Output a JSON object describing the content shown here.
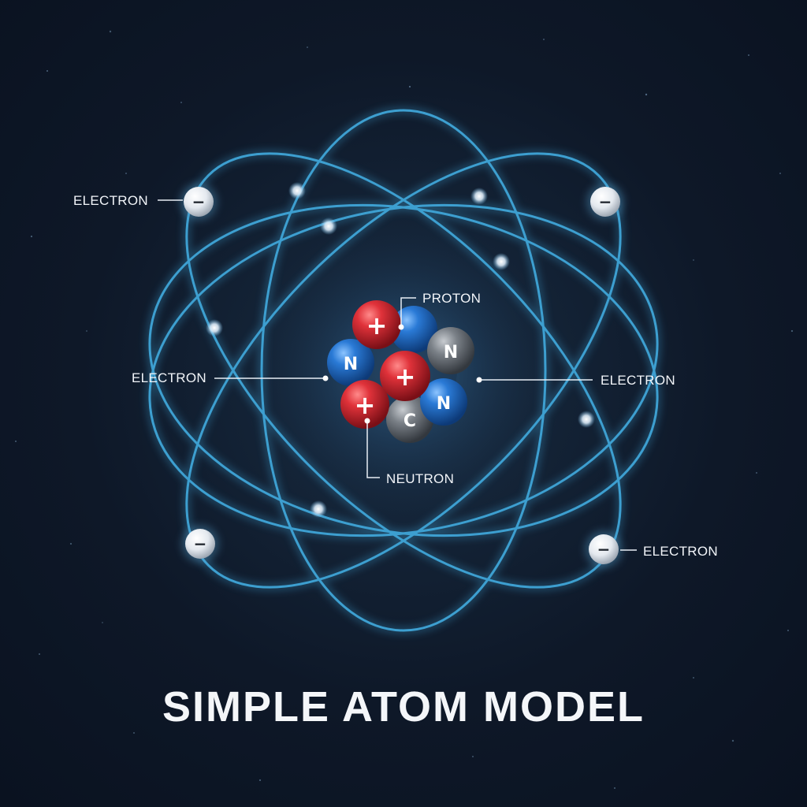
{
  "title": "SIMPLE ATOM MODEL",
  "labels": {
    "electron_top_left": "ELECTRON",
    "electron_mid_left": "ELECTRON",
    "electron_mid_right": "ELECTRON",
    "electron_bottom_right": "ELECTRON",
    "proton": "PROTON",
    "neutron": "NEUTRON"
  },
  "particle_signs": {
    "proton": "+",
    "electron": "−",
    "neutron": "N",
    "carbon": "C"
  },
  "colors": {
    "background": "#0e1828",
    "orbit": "#3d9fd0",
    "proton": "#d42a33",
    "neutron_blue": "#1f72c8",
    "neutron_gray": "#6b7077",
    "electron": "#eef2f6",
    "label_text": "#f2f5f9"
  }
}
